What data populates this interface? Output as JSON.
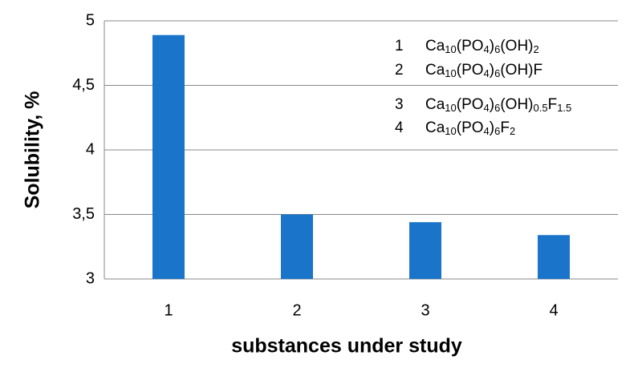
{
  "chart_data": {
    "type": "bar",
    "x_label": "substances under study",
    "y_label": "Solubility, %",
    "categories": [
      "1",
      "2",
      "3",
      "4"
    ],
    "values": [
      4.89,
      3.5,
      3.44,
      3.34
    ],
    "color": "#1a74c9",
    "ylim": [
      3,
      5
    ],
    "yticks": [
      3,
      {
        "value": 3.5,
        "label": "3,5"
      },
      4,
      {
        "value": 4.5,
        "label": "4,5"
      },
      5
    ],
    "grid": true,
    "annotations": [
      {
        "number": "1",
        "formula": "Ca10(PO4)6(OH)2"
      },
      {
        "number": "2",
        "formula": "Ca10(PO4)6(OH)F"
      },
      {
        "number": "3",
        "formula": "Ca10(PO4)6(OH)0.5F1.5"
      },
      {
        "number": "4",
        "formula": "Ca10(PO4)6F2"
      }
    ]
  }
}
